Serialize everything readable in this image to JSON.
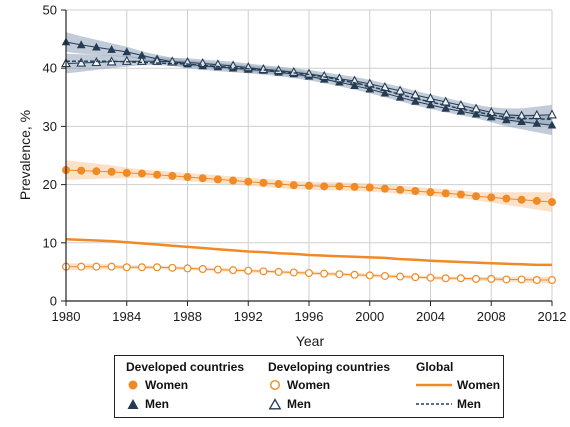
{
  "colors": {
    "orange": "#f08a24",
    "orange_band": "#f7c99b",
    "navy": "#243b53",
    "navy_band": "#8fa3b8",
    "grid": "#cfcfcf"
  },
  "chart_data": {
    "type": "line",
    "title": "",
    "xlabel": "Year",
    "ylabel": "Prevalence, %",
    "xlim": [
      1980,
      2012
    ],
    "ylim": [
      0,
      50
    ],
    "xticks": [
      1980,
      1984,
      1988,
      1992,
      1996,
      2000,
      2004,
      2008,
      2012
    ],
    "yticks": [
      0,
      10,
      20,
      30,
      40,
      50
    ],
    "grid": true,
    "legend_position": "bottom",
    "x": [
      1980,
      1981,
      1982,
      1983,
      1984,
      1985,
      1986,
      1987,
      1988,
      1989,
      1990,
      1991,
      1992,
      1993,
      1994,
      1995,
      1996,
      1997,
      1998,
      1999,
      2000,
      2001,
      2002,
      2003,
      2004,
      2005,
      2006,
      2007,
      2008,
      2009,
      2010,
      2011,
      2012
    ],
    "series": [
      {
        "group": "Developed countries",
        "name": "Women",
        "marker": "filled-circle",
        "values": [
          22.5,
          22.4,
          22.3,
          22.2,
          22.0,
          21.9,
          21.7,
          21.5,
          21.3,
          21.1,
          20.9,
          20.7,
          20.5,
          20.3,
          20.1,
          19.9,
          19.8,
          19.7,
          19.7,
          19.6,
          19.5,
          19.3,
          19.1,
          18.9,
          18.7,
          18.5,
          18.3,
          18.0,
          17.8,
          17.6,
          17.4,
          17.2,
          17.0
        ]
      },
      {
        "group": "Developed countries",
        "name": "Men",
        "marker": "filled-triangle",
        "values": [
          44.5,
          44.0,
          43.6,
          43.2,
          42.8,
          42.2,
          41.6,
          41.1,
          40.7,
          40.4,
          40.2,
          40.0,
          39.8,
          39.6,
          39.3,
          39.0,
          38.6,
          38.1,
          37.6,
          37.0,
          36.4,
          35.7,
          35.0,
          34.3,
          33.7,
          33.1,
          32.6,
          32.1,
          31.6,
          31.1,
          30.8,
          30.5,
          30.2
        ]
      },
      {
        "group": "Developing countries",
        "name": "Women",
        "marker": "open-circle",
        "values": [
          5.9,
          5.9,
          5.9,
          5.9,
          5.8,
          5.8,
          5.8,
          5.7,
          5.6,
          5.5,
          5.4,
          5.3,
          5.2,
          5.1,
          5.0,
          4.9,
          4.8,
          4.7,
          4.6,
          4.5,
          4.4,
          4.3,
          4.2,
          4.1,
          4.0,
          3.9,
          3.9,
          3.8,
          3.8,
          3.7,
          3.7,
          3.6,
          3.6
        ]
      },
      {
        "group": "Developing countries",
        "name": "Men",
        "marker": "open-triangle",
        "values": [
          40.8,
          40.9,
          41.0,
          41.1,
          41.2,
          41.2,
          41.2,
          41.1,
          41.0,
          40.8,
          40.6,
          40.4,
          40.1,
          39.8,
          39.6,
          39.3,
          39.0,
          38.6,
          38.2,
          37.8,
          37.3,
          36.7,
          36.1,
          35.4,
          34.8,
          34.2,
          33.6,
          33.0,
          32.4,
          32.0,
          31.8,
          31.9,
          32.0
        ]
      },
      {
        "group": "Global",
        "name": "Women",
        "marker": "solid-line",
        "values": [
          10.6,
          10.5,
          10.4,
          10.3,
          10.1,
          9.9,
          9.7,
          9.5,
          9.3,
          9.1,
          8.9,
          8.7,
          8.5,
          8.4,
          8.2,
          8.1,
          7.9,
          7.8,
          7.7,
          7.6,
          7.5,
          7.4,
          7.2,
          7.1,
          6.9,
          6.8,
          6.7,
          6.6,
          6.5,
          6.4,
          6.3,
          6.2,
          6.2
        ]
      },
      {
        "group": "Global",
        "name": "Men",
        "marker": "dashed-line",
        "values": [
          41.2,
          41.2,
          41.2,
          41.2,
          41.1,
          41.0,
          40.9,
          40.8,
          40.7,
          40.5,
          40.3,
          40.1,
          39.9,
          39.7,
          39.5,
          39.2,
          38.9,
          38.5,
          38.0,
          37.5,
          36.9,
          36.2,
          35.5,
          34.8,
          34.2,
          33.6,
          33.0,
          32.5,
          32.0,
          31.6,
          31.4,
          31.3,
          31.2
        ]
      }
    ]
  },
  "legend": {
    "headings": [
      "Developed countries",
      "Developing countries",
      "Global"
    ],
    "developed_women": "Women",
    "developed_men": "Men",
    "developing_women": "Women",
    "developing_men": "Men",
    "global_women": "Women",
    "global_men": "Men"
  }
}
